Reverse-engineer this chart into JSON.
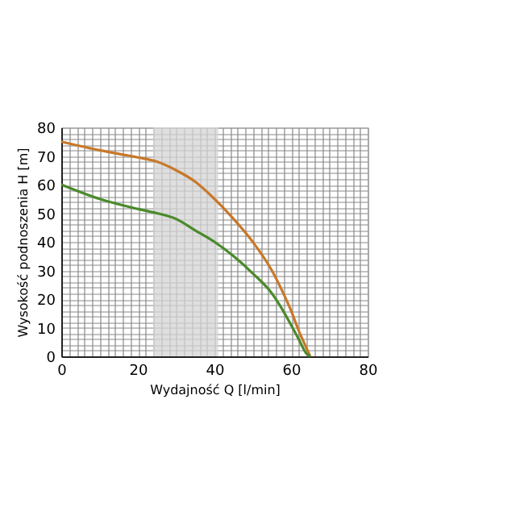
{
  "chart_data": {
    "type": "line",
    "xlabel": "Wydajność Q [l/min]",
    "ylabel": "Wysokość podnoszenia H [m]",
    "xlim": [
      0,
      80
    ],
    "ylim": [
      0,
      80
    ],
    "xticks": [
      0,
      {
        "value": 2,
        "label": null
      },
      {
        "value": 4,
        "label": null
      },
      {
        "value": 6,
        "label": null
      },
      {
        "value": 8,
        "label": null
      },
      {
        "value": 10,
        "label": null
      },
      {
        "value": 12,
        "label": null
      },
      {
        "value": 14,
        "label": null
      },
      {
        "value": 16,
        "label": null
      },
      {
        "value": 18,
        "label": null
      },
      20,
      {
        "value": 22,
        "label": null
      },
      {
        "value": 24,
        "label": null
      },
      {
        "value": 26,
        "label": null
      },
      {
        "value": 28,
        "label": null
      },
      {
        "value": 30,
        "label": null
      },
      {
        "value": 32,
        "label": null
      },
      {
        "value": 34,
        "label": null
      },
      {
        "value": 36,
        "label": null
      },
      {
        "value": 38,
        "label": null
      },
      40,
      {
        "value": 42,
        "label": null
      },
      {
        "value": 44,
        "label": null
      },
      {
        "value": 46,
        "label": null
      },
      {
        "value": 48,
        "label": null
      },
      {
        "value": 50,
        "label": null
      },
      {
        "value": 52,
        "label": null
      },
      {
        "value": 54,
        "label": null
      },
      {
        "value": 56,
        "label": null
      },
      {
        "value": 58,
        "label": null
      },
      60,
      {
        "value": 62,
        "label": null
      },
      {
        "value": 64,
        "label": null
      },
      {
        "value": 66,
        "label": null
      },
      {
        "value": 68,
        "label": null
      },
      {
        "value": 70,
        "label": null
      },
      {
        "value": 72,
        "label": null
      },
      {
        "value": 74,
        "label": null
      },
      {
        "value": 76,
        "label": null
      },
      {
        "value": 78,
        "label": null
      },
      80
    ],
    "yticks": [
      0,
      {
        "value": 2,
        "label": null
      },
      {
        "value": 4,
        "label": null
      },
      {
        "value": 6,
        "label": null
      },
      {
        "value": 8,
        "label": null
      },
      10,
      {
        "value": 12,
        "label": null
      },
      {
        "value": 14,
        "label": null
      },
      {
        "value": 16,
        "label": null
      },
      {
        "value": 18,
        "label": null
      },
      20,
      {
        "value": 22,
        "label": null
      },
      {
        "value": 24,
        "label": null
      },
      {
        "value": 26,
        "label": null
      },
      {
        "value": 28,
        "label": null
      },
      30,
      {
        "value": 32,
        "label": null
      },
      {
        "value": 34,
        "label": null
      },
      {
        "value": 36,
        "label": null
      },
      {
        "value": 38,
        "label": null
      },
      40,
      {
        "value": 42,
        "label": null
      },
      {
        "value": 44,
        "label": null
      },
      {
        "value": 46,
        "label": null
      },
      {
        "value": 48,
        "label": null
      },
      50,
      {
        "value": 52,
        "label": null
      },
      {
        "value": 54,
        "label": null
      },
      {
        "value": 56,
        "label": null
      },
      {
        "value": 58,
        "label": null
      },
      60,
      {
        "value": 62,
        "label": null
      },
      {
        "value": 64,
        "label": null
      },
      {
        "value": 66,
        "label": null
      },
      {
        "value": 68,
        "label": null
      },
      70,
      {
        "value": 72,
        "label": null
      },
      {
        "value": 74,
        "label": null
      },
      {
        "value": 76,
        "label": null
      },
      {
        "value": 78,
        "label": null
      },
      80
    ],
    "grid": true,
    "bands": [
      {
        "axis": "x",
        "from": 24,
        "to": 41,
        "color": "#d4d4d4"
      }
    ],
    "series": [
      {
        "color": "#c8782a",
        "x": [
          0,
          10,
          20,
          25,
          30,
          35,
          40,
          45,
          50,
          55,
          58,
          60,
          62,
          64,
          65
        ],
        "values": [
          75,
          72,
          69.5,
          68,
          65,
          61,
          55,
          48,
          40,
          30,
          22,
          16,
          9,
          3,
          0
        ]
      },
      {
        "color": "#4a8a2a",
        "x": [
          0,
          10,
          20,
          25,
          30,
          35,
          40,
          45,
          50,
          55,
          57,
          60,
          62,
          64,
          65
        ],
        "values": [
          60,
          55,
          51.5,
          50,
          48,
          44,
          40,
          35,
          29,
          22,
          18,
          11,
          6,
          1,
          0
        ]
      }
    ]
  }
}
